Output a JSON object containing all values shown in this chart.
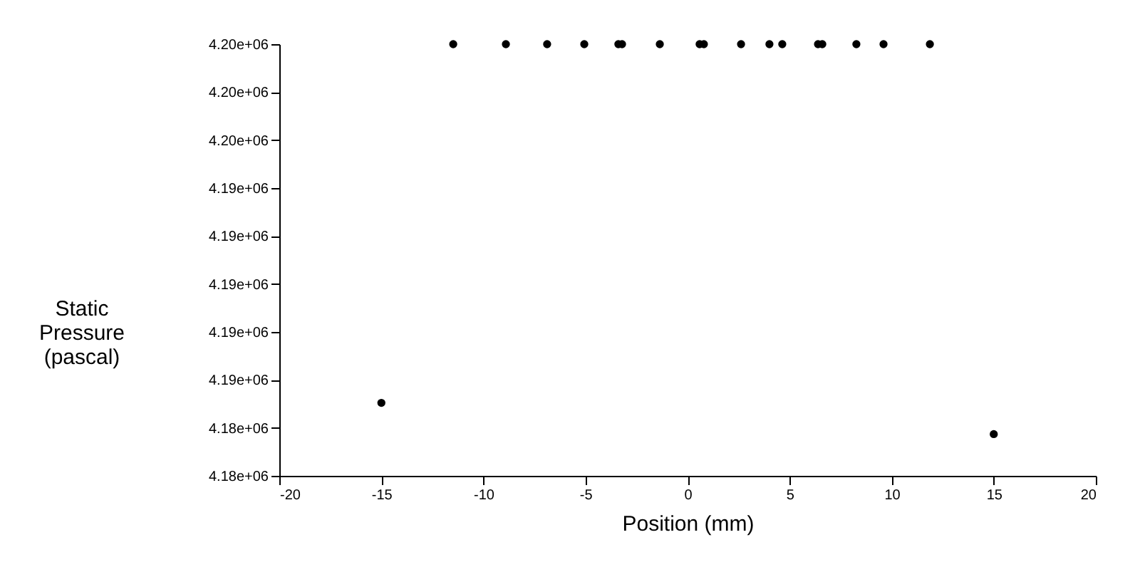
{
  "chart_data": {
    "type": "scatter",
    "xlabel": "Position (mm)",
    "ylabel": "Static Pressure (pascal)",
    "x": [
      -15,
      -11.48,
      -8.9,
      -6.88,
      -5.06,
      -3.39,
      -3.21,
      -1.36,
      0.59,
      0.8,
      2.62,
      4.01,
      4.64,
      6.39,
      6.6,
      8.27,
      9.6,
      11.87,
      15
    ],
    "values": [
      4184000,
      4201200,
      4201200,
      4201200,
      4201200,
      4201200,
      4201200,
      4201200,
      4201200,
      4201200,
      4201200,
      4201200,
      4201200,
      4201200,
      4201200,
      4201200,
      4201200,
      4201200,
      4182500
    ],
    "color": "#000000",
    "marker": "circle",
    "xlim": [
      -20,
      20
    ],
    "xticks": [
      -20,
      -15,
      -10,
      -5,
      0,
      5,
      10,
      15,
      20
    ],
    "ylim": [
      4180500,
      4201200
    ],
    "yticks": [
      {
        "value": 4180500,
        "label": "4.18e+06"
      },
      {
        "value": 4182800,
        "label": "4.18e+06"
      },
      {
        "value": 4185100,
        "label": "4.19e+06"
      },
      {
        "value": 4187400,
        "label": "4.19e+06"
      },
      {
        "value": 4189700,
        "label": "4.19e+06"
      },
      {
        "value": 4192000,
        "label": "4.19e+06"
      },
      {
        "value": 4194300,
        "label": "4.19e+06"
      },
      {
        "value": 4196600,
        "label": "4.20e+06"
      },
      {
        "value": 4198900,
        "label": "4.20e+06"
      },
      {
        "value": 4201200,
        "label": "4.20e+06"
      }
    ],
    "grid": false
  }
}
